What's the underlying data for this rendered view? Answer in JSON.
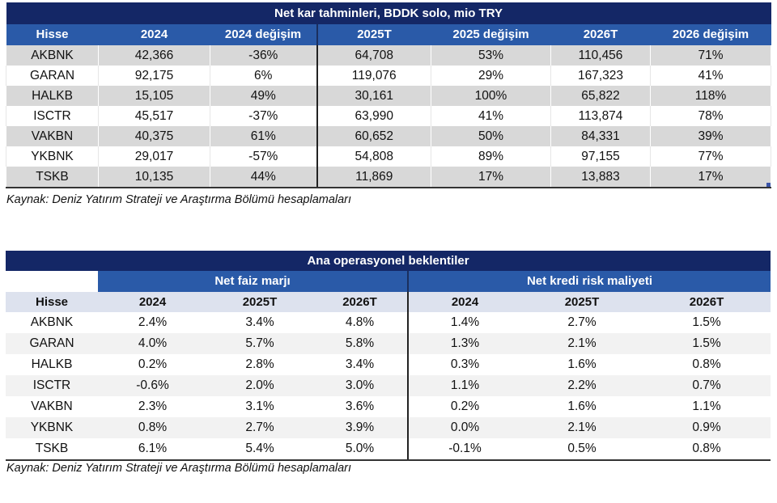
{
  "table1": {
    "title": "Net kar tahminleri, BDDK solo, mio TRY",
    "headers": [
      "Hisse",
      "2024",
      "2024 değişim",
      "2025T",
      "2025 değişim",
      "2026T",
      "2026 değişim"
    ],
    "rows": [
      [
        "AKBNK",
        "42,366",
        "-36%",
        "64,708",
        "53%",
        "110,456",
        "71%"
      ],
      [
        "GARAN",
        "92,175",
        "6%",
        "119,076",
        "29%",
        "167,323",
        "41%"
      ],
      [
        "HALKB",
        "15,105",
        "49%",
        "30,161",
        "100%",
        "65,822",
        "118%"
      ],
      [
        "ISCTR",
        "45,517",
        "-37%",
        "63,990",
        "41%",
        "113,874",
        "78%"
      ],
      [
        "VAKBN",
        "40,375",
        "61%",
        "60,652",
        "50%",
        "84,331",
        "39%"
      ],
      [
        "YKBNK",
        "29,017",
        "-57%",
        "54,808",
        "89%",
        "97,155",
        "77%"
      ],
      [
        "TSKB",
        "10,135",
        "44%",
        "11,869",
        "17%",
        "13,883",
        "17%"
      ]
    ],
    "source": "Kaynak: Deniz Yatırım Strateji ve Araştırma Bölümü hesaplamaları"
  },
  "table2": {
    "title": "Ana operasyonel beklentiler",
    "groups": [
      "Net faiz marjı",
      "Net kredi risk maliyeti"
    ],
    "headers": [
      "Hisse",
      "2024",
      "2025T",
      "2026T",
      "2024",
      "2025T",
      "2026T"
    ],
    "rows": [
      [
        "AKBNK",
        "2.4%",
        "3.4%",
        "4.8%",
        "1.4%",
        "2.7%",
        "1.5%"
      ],
      [
        "GARAN",
        "4.0%",
        "5.7%",
        "5.8%",
        "1.3%",
        "2.1%",
        "1.5%"
      ],
      [
        "HALKB",
        "0.2%",
        "2.8%",
        "3.4%",
        "0.3%",
        "1.6%",
        "0.8%"
      ],
      [
        "ISCTR",
        "-0.6%",
        "2.0%",
        "3.0%",
        "1.1%",
        "2.2%",
        "0.7%"
      ],
      [
        "VAKBN",
        "2.3%",
        "3.1%",
        "3.6%",
        "0.2%",
        "1.6%",
        "1.1%"
      ],
      [
        "YKBNK",
        "0.8%",
        "2.7%",
        "3.9%",
        "0.0%",
        "2.1%",
        "0.9%"
      ],
      [
        "TSKB",
        "6.1%",
        "5.4%",
        "5.0%",
        "-0.1%",
        "0.5%",
        "0.8%"
      ]
    ],
    "source": "Kaynak: Deniz Yatırım Strateji ve Araştırma Bölümü hesaplamaları"
  },
  "colors": {
    "title_bg": "#142766",
    "header_bg": "#2a5aa8",
    "subheader_bg": "#dde2ee",
    "stripe_gray": "#d8d8d8",
    "stripe_light": "#f2f2f2"
  }
}
